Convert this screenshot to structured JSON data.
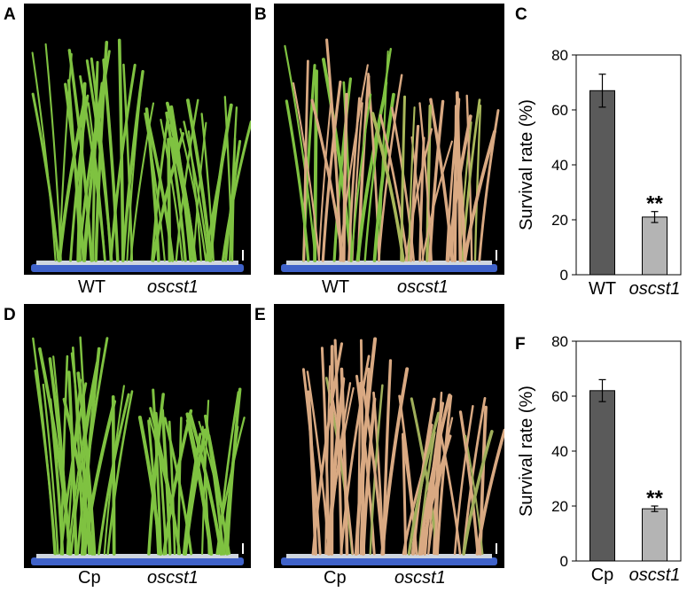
{
  "panels": {
    "A": {
      "label": "A",
      "captions": [
        "WT",
        "oscst1"
      ],
      "tone": "green"
    },
    "B": {
      "label": "B",
      "captions": [
        "WT",
        "oscst1"
      ],
      "tone": "mixed"
    },
    "C": {
      "label": "C"
    },
    "D": {
      "label": "D",
      "captions": [
        "Cp",
        "oscst1"
      ],
      "tone": "green"
    },
    "E": {
      "label": "E",
      "captions": [
        "Cp",
        "oscst1"
      ],
      "tone": "dry"
    },
    "F": {
      "label": "F"
    }
  },
  "colors": {
    "bar_dark": "#5a5a5a",
    "bar_light": "#b4b4b4",
    "leaf_green": "#7fc241",
    "leaf_dry": "#d9a982",
    "tray_blue": "#3f62c9"
  },
  "chart_data": [
    {
      "type": "bar",
      "panel": "C",
      "categories": [
        "WT",
        "oscst1"
      ],
      "values": [
        67,
        21
      ],
      "errors": [
        6,
        2
      ],
      "significance": [
        "",
        "**"
      ],
      "ylabel": "Survival rate (%)",
      "ylim": [
        0,
        80
      ],
      "yticks": [
        0,
        20,
        40,
        60,
        80
      ]
    },
    {
      "type": "bar",
      "panel": "F",
      "categories": [
        "Cp",
        "oscst1"
      ],
      "values": [
        62,
        19
      ],
      "errors": [
        4,
        1
      ],
      "significance": [
        "",
        "**"
      ],
      "ylabel": "Survival rate (%)",
      "ylim": [
        0,
        80
      ],
      "yticks": [
        0,
        20,
        40,
        60,
        80
      ]
    }
  ]
}
